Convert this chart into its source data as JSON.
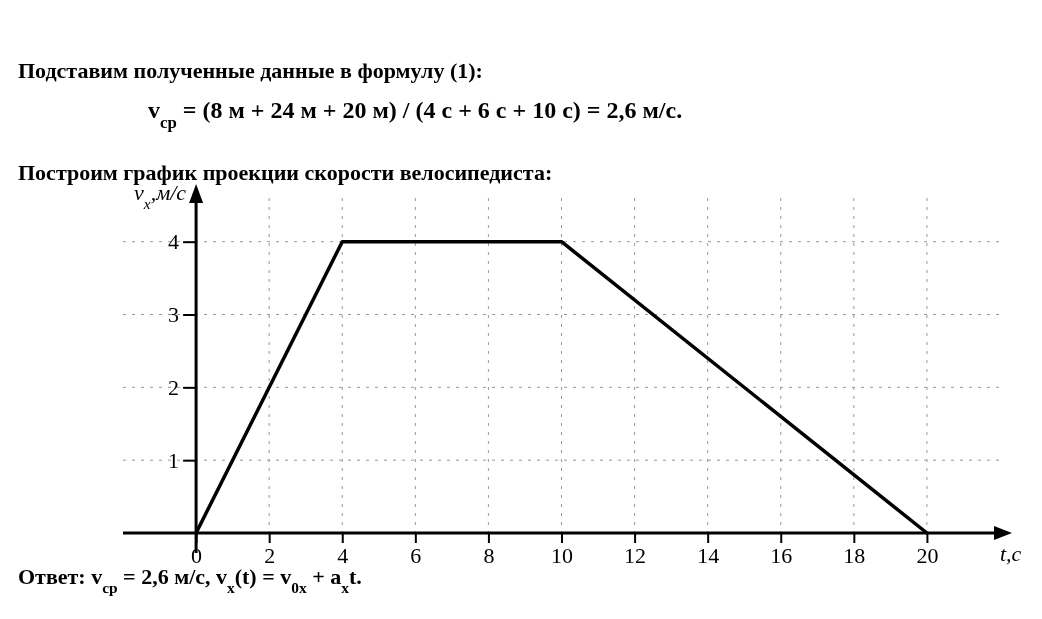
{
  "chart_data": {
    "type": "line",
    "title": "Построим график проекции скорости велосипедиста:",
    "xlabel": "t,c",
    "ylabel": "v$_{x}$,м/с",
    "annotations": [
      "Подставим полученные данные в формулу (1):",
      "v$_{ср}$ = (8 м + 24 м + 20 м) / (4 с + 6 с + 10 с) = 2,6 м/с.",
      "Ответ: v$_{ср}$ = 2,6 м/с, v$_{x}$(t) = v$_{0x}$ + a$_{x}$t."
    ],
    "x": [
      0,
      4,
      10,
      20
    ],
    "series": [
      {
        "color": "#000000",
        "values": [
          0,
          4,
          4,
          0
        ]
      }
    ],
    "xlim": [
      -2,
      22
    ],
    "ylim": [
      0,
      4.6
    ],
    "xticks": [
      0,
      2,
      4,
      6,
      8,
      10,
      12,
      14,
      16,
      18,
      20
    ],
    "yticks": [
      1,
      2,
      3,
      4
    ],
    "grid": true,
    "marker": "none",
    "line_style": "solid"
  }
}
